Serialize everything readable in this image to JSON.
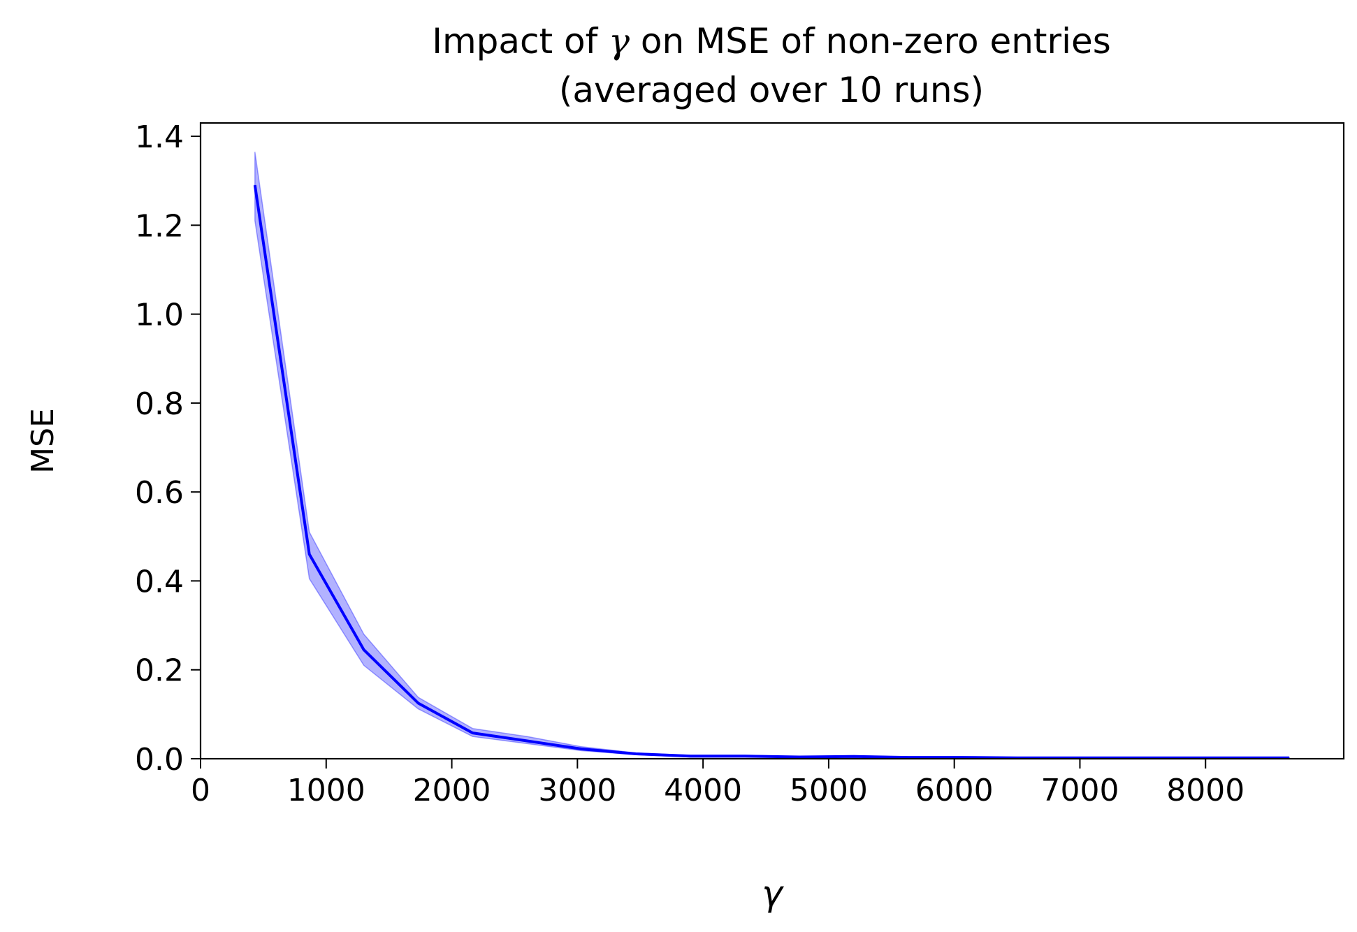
{
  "chart_data": {
    "type": "line",
    "title_line1_prefix": "Impact of ",
    "title_symbol": "γ",
    "title_line1_suffix": " on MSE of non-zero entries",
    "title_line2": "(averaged over 10 runs)",
    "xlabel": "γ",
    "ylabel": "MSE",
    "xlim": [
      0,
      9100
    ],
    "ylim": [
      0,
      1.43
    ],
    "xticks": [
      0,
      1000,
      2000,
      3000,
      4000,
      5000,
      6000,
      7000,
      8000
    ],
    "xtick_labels": [
      "0",
      "1000",
      "2000",
      "3000",
      "4000",
      "5000",
      "6000",
      "7000",
      "8000"
    ],
    "yticks": [
      0,
      0.2,
      0.4,
      0.6,
      0.8,
      1.0,
      1.2,
      1.4
    ],
    "ytick_labels": [
      "0.0",
      "0.2",
      "0.4",
      "0.6",
      "0.8",
      "1.0",
      "1.2",
      "1.4"
    ],
    "grid": false,
    "legend": "none",
    "series": [
      {
        "color": "#0000ff",
        "band_color": "#0000ff",
        "band_opacity": 0.3,
        "x": [
          433,
          866,
          1300,
          1733,
          2166,
          2600,
          3033,
          3466,
          3900,
          4333,
          4766,
          5200,
          5633,
          6066,
          6500,
          6933,
          7366,
          7800,
          8233,
          8666
        ],
        "y": [
          1.29,
          0.46,
          0.245,
          0.125,
          0.058,
          0.04,
          0.022,
          0.011,
          0.006,
          0.006,
          0.004,
          0.005,
          0.003,
          0.003,
          0.002,
          0.002,
          0.002,
          0.002,
          0.002,
          0.002
        ],
        "lower": [
          1.21,
          0.405,
          0.21,
          0.112,
          0.05,
          0.034,
          0.018,
          0.009,
          0.004,
          0.004,
          0.003,
          0.003,
          0.002,
          0.002,
          0.001,
          0.001,
          0.001,
          0.001,
          0.001,
          0.001
        ],
        "upper": [
          1.365,
          0.51,
          0.28,
          0.138,
          0.068,
          0.05,
          0.027,
          0.013,
          0.008,
          0.008,
          0.005,
          0.007,
          0.004,
          0.004,
          0.003,
          0.003,
          0.003,
          0.003,
          0.003,
          0.003
        ]
      }
    ]
  }
}
